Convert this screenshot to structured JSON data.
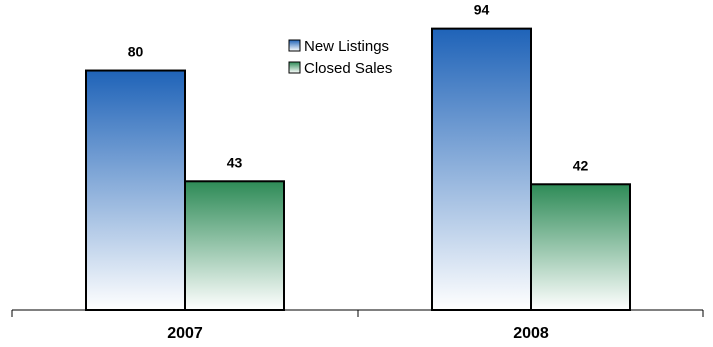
{
  "chart_data": {
    "type": "bar",
    "categories": [
      "2007",
      "2008"
    ],
    "series": [
      {
        "name": "New Listings",
        "values": [
          80,
          94
        ],
        "color": "#1f63b8"
      },
      {
        "name": "Closed Sales",
        "values": [
          43,
          42
        ],
        "color": "#2e8b57"
      }
    ],
    "ylim": [
      0,
      100
    ],
    "data_labels": true,
    "grid": false,
    "legend_position": "top-center",
    "title": "",
    "xlabel": "",
    "ylabel": ""
  }
}
